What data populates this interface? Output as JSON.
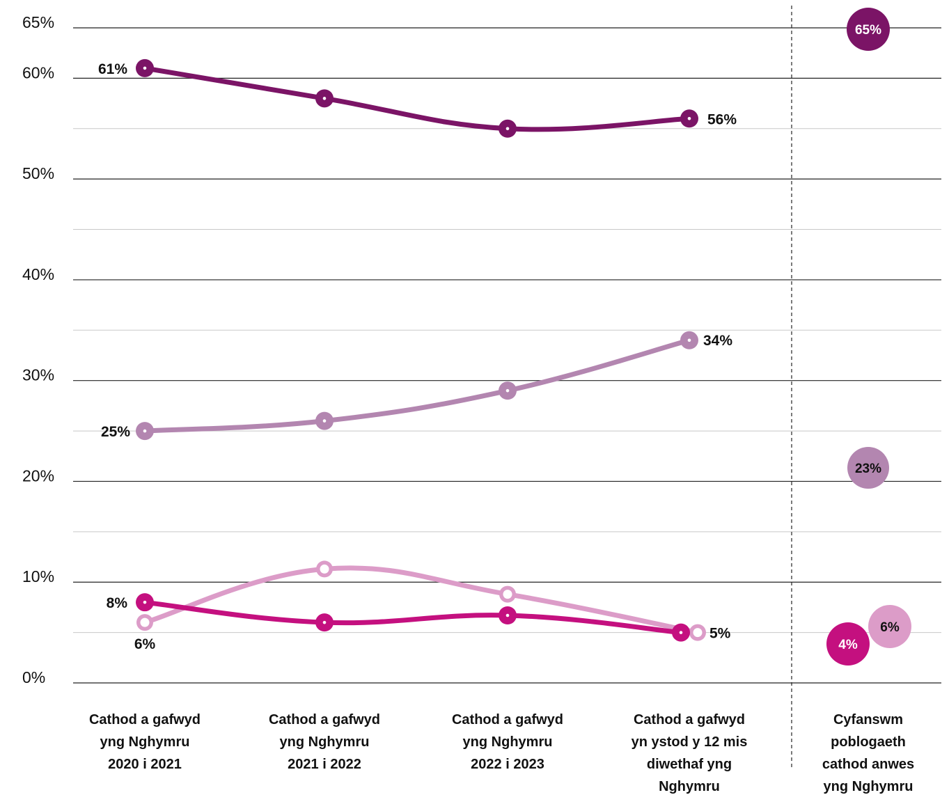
{
  "chart_data": {
    "type": "line",
    "ylim": [
      0,
      65
    ],
    "y_ticks": [
      {
        "value": 0,
        "label": "0%"
      },
      {
        "value": 10,
        "label": "10%"
      },
      {
        "value": 20,
        "label": "20%"
      },
      {
        "value": 30,
        "label": "30%"
      },
      {
        "value": 40,
        "label": "40%"
      },
      {
        "value": 50,
        "label": "50%"
      },
      {
        "value": 60,
        "label": "60%"
      },
      {
        "value": 65,
        "label": "65%"
      }
    ],
    "grid": true,
    "categories": [
      [
        "Cathod a gafwyd",
        "yng Nghymru",
        "2020 i 2021"
      ],
      [
        "Cathod a gafwyd",
        "yng Nghymru",
        "2021 i 2022"
      ],
      [
        "Cathod a gafwyd",
        "yng Nghymru",
        "2022 i 2023"
      ],
      [
        "Cathod a gafwyd",
        "yn ystod y 12 mis",
        "diwethaf yng",
        "Nghymru"
      ]
    ],
    "total_category": [
      "Cyfanswm",
      "poblogaeth",
      "cathod anwes",
      "yng Nghymru"
    ],
    "series": [
      {
        "color": "#7b1466",
        "point_style": "filled",
        "values": [
          61,
          58,
          55,
          56
        ],
        "labels": [
          "61%",
          "",
          "",
          "56%"
        ],
        "total": 65,
        "total_label": "65%"
      },
      {
        "color": "#b386b0",
        "point_style": "filled",
        "values": [
          25,
          26,
          29,
          34
        ],
        "labels": [
          "25%",
          "",
          "",
          "34%"
        ],
        "total": 23,
        "total_label": "23%"
      },
      {
        "color": "#dc9cc8",
        "point_style": "ring",
        "values": [
          6,
          11.3,
          8.8,
          5
        ],
        "labels": [
          "6%",
          "",
          "",
          "5%"
        ],
        "total": 6,
        "total_label": "6%"
      },
      {
        "color": "#c4107f",
        "point_style": "filled",
        "values": [
          8,
          6,
          6.7,
          5
        ],
        "labels": [
          "8%",
          "",
          "",
          ""
        ],
        "total": 4,
        "total_label": "4%"
      }
    ]
  }
}
